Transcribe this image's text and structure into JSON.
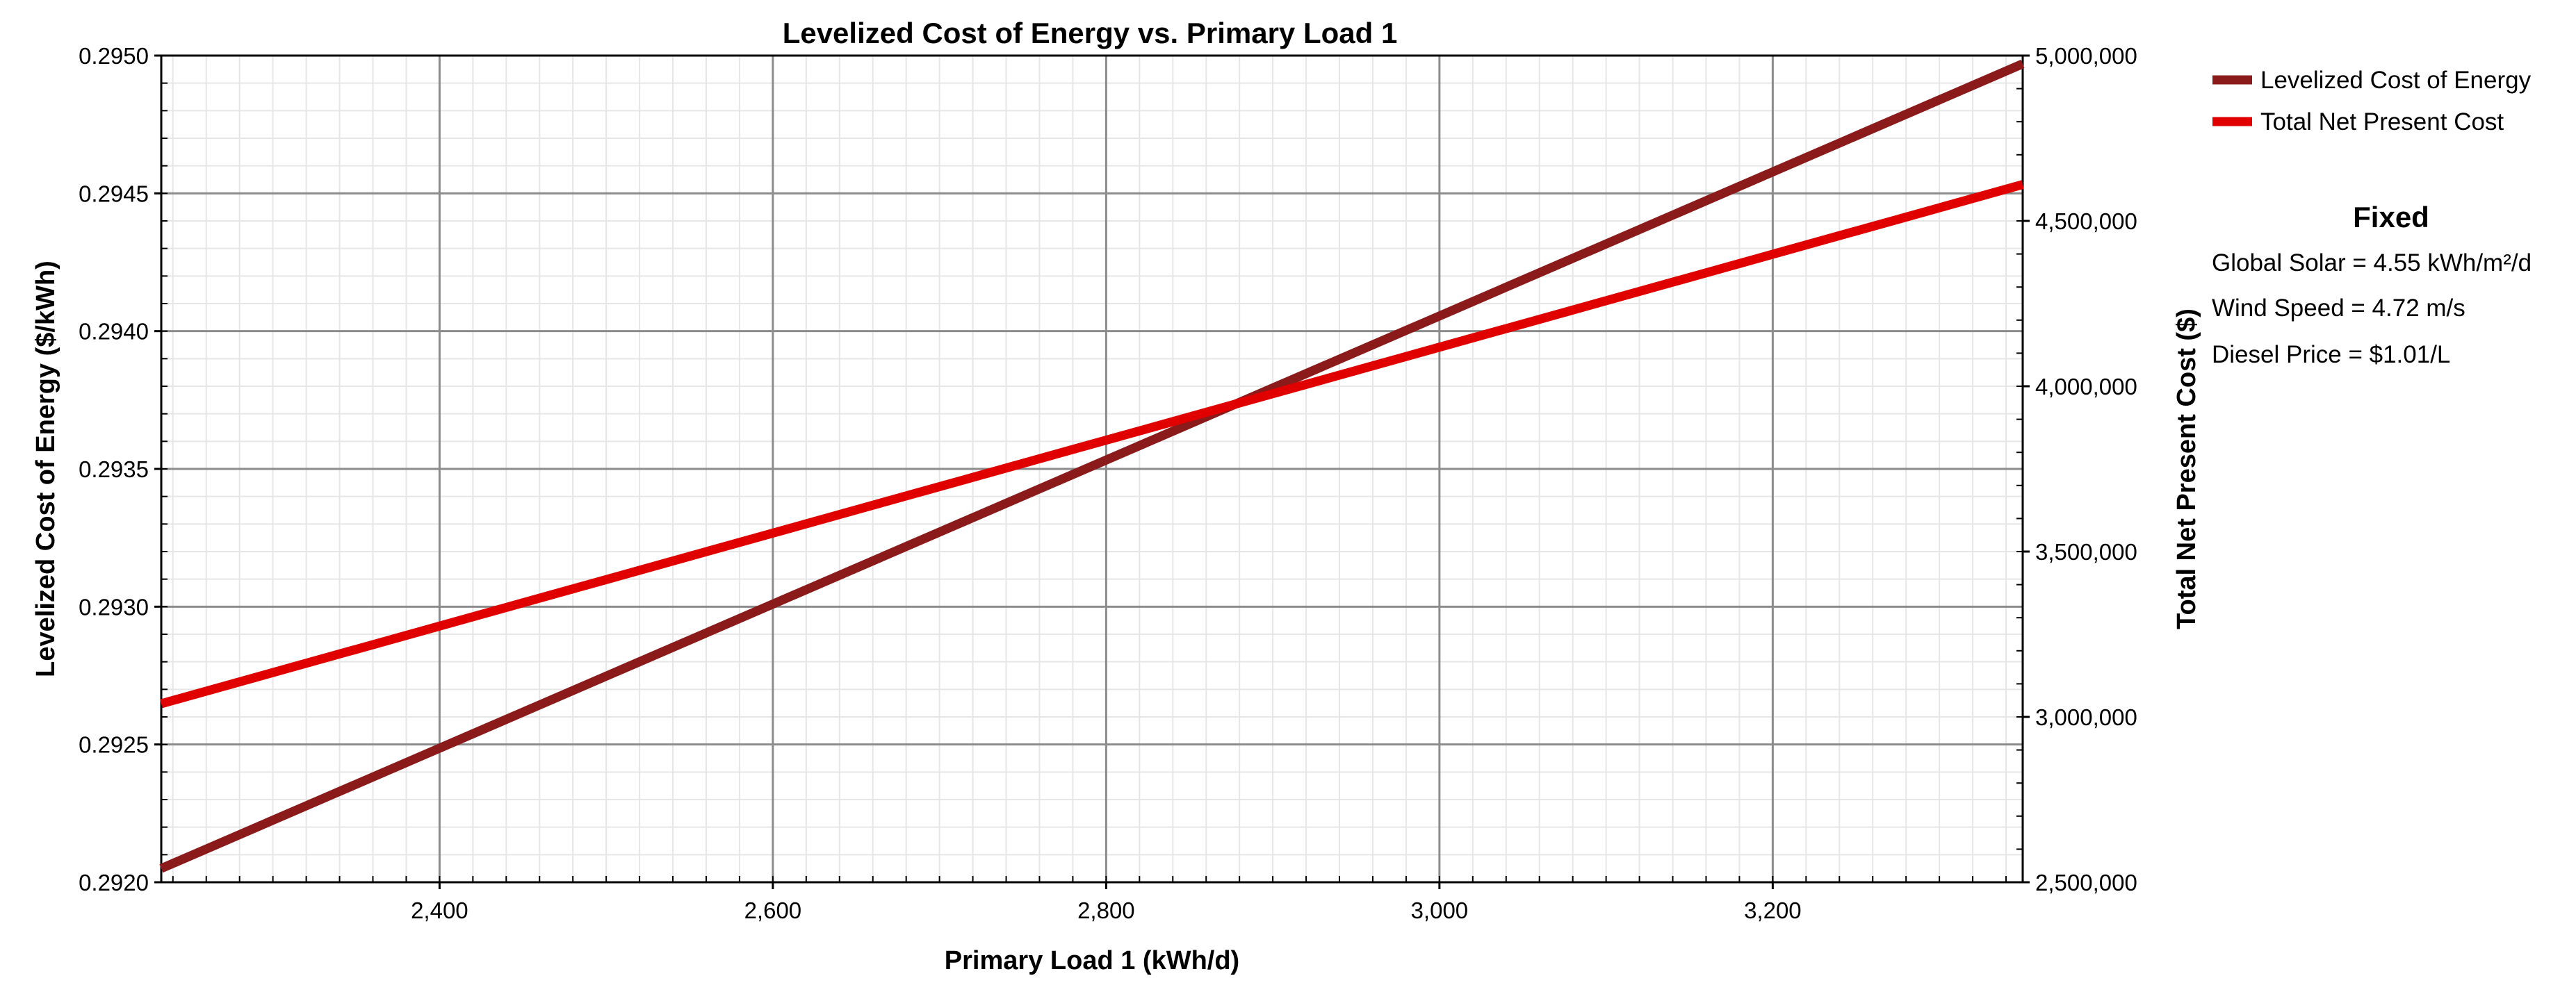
{
  "chart_data": {
    "type": "line",
    "title": "Levelized Cost of Energy vs. Primary Load 1",
    "xlabel": "Primary Load 1 (kWh/d)",
    "ylabel_left": "Levelized Cost of Energy ($/kWh)",
    "ylabel_right": "Total Net Present Cost ($)",
    "xlim": [
      2233,
      3350
    ],
    "ylim_left": [
      0.292,
      0.295
    ],
    "ylim_right": [
      2500000,
      5000000
    ],
    "x_ticks": [
      2400,
      2600,
      2800,
      3000,
      3200
    ],
    "x_tick_labels": [
      "2,400",
      "2,600",
      "2,800",
      "3,000",
      "3,200"
    ],
    "y_left_ticks": [
      0.292,
      0.2925,
      0.293,
      0.2935,
      0.294,
      0.2945,
      0.295
    ],
    "y_left_tick_labels": [
      "0.2920",
      "0.2925",
      "0.2930",
      "0.2935",
      "0.2940",
      "0.2945",
      "0.2950"
    ],
    "y_right_ticks": [
      2500000,
      3000000,
      3500000,
      4000000,
      4500000,
      5000000
    ],
    "y_right_tick_labels": [
      "2,500,000",
      "3,000,000",
      "3,500,000",
      "4,000,000",
      "4,500,000",
      "5,000,000"
    ],
    "grid": true,
    "legend_position": "right",
    "series": [
      {
        "name": "Levelized Cost of Energy",
        "axis": "left",
        "color": "#8b1a1a",
        "x": [
          2233,
          3350
        ],
        "values": [
          0.29205,
          0.29497
        ]
      },
      {
        "name": "Total Net Present Cost",
        "axis": "right",
        "color": "#e00000",
        "x": [
          2233,
          3350
        ],
        "values": [
          3040000,
          4610000
        ]
      }
    ],
    "annotations": {
      "title": "Fixed",
      "lines": [
        "Global Solar = 4.55 kWh/m²/d",
        "Wind Speed = 4.72 m/s",
        "Diesel Price = $1.01/L"
      ]
    }
  }
}
